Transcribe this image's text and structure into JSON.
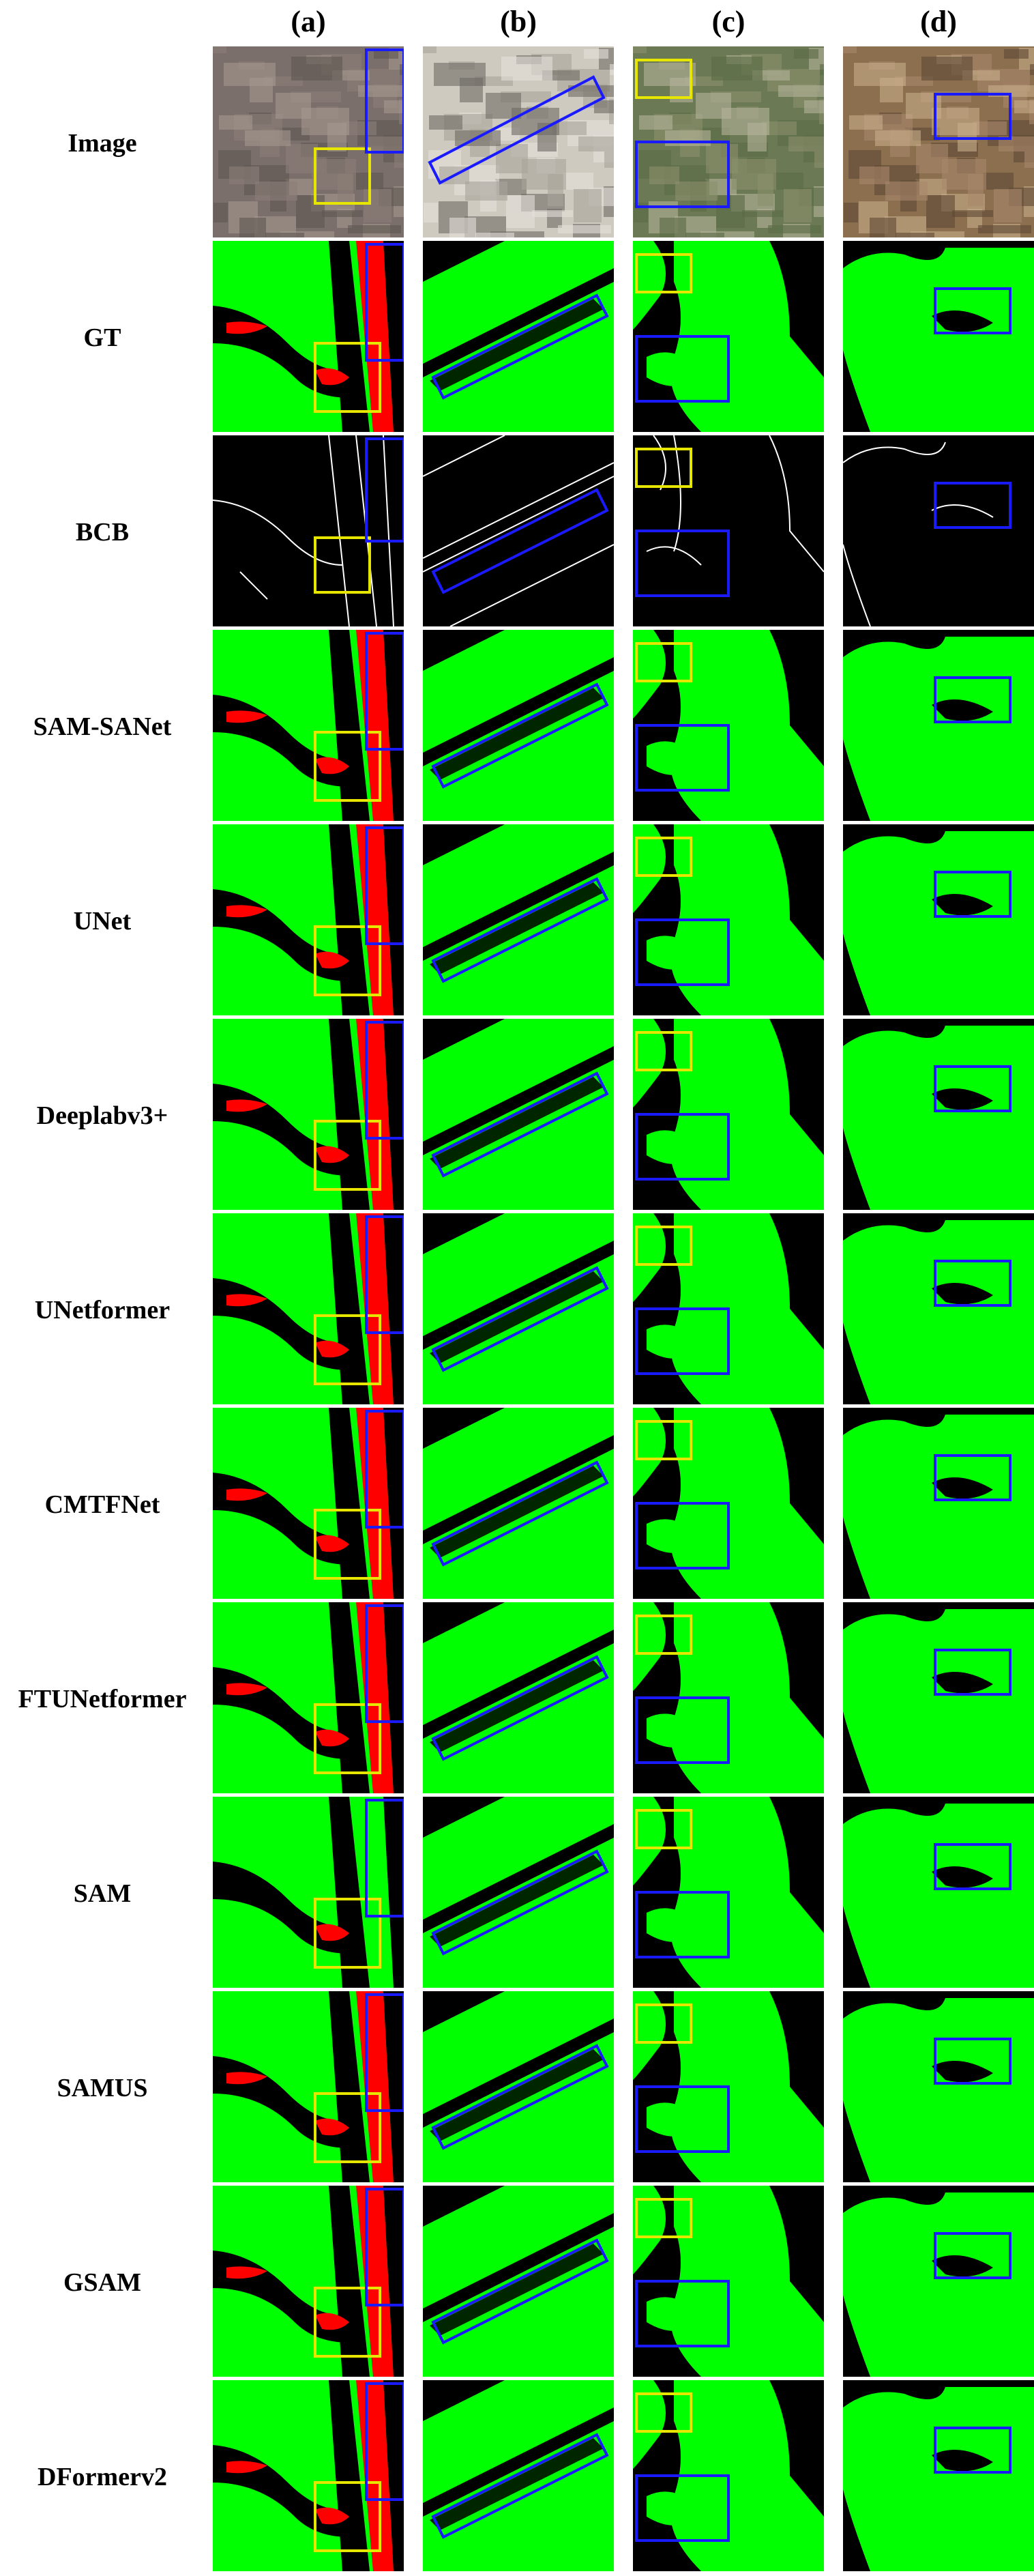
{
  "columns": [
    "(a)",
    "(b)",
    "(c)",
    "(d)"
  ],
  "rows": [
    "Image",
    "GT",
    "BCB",
    "SAM-SANet",
    "UNet",
    "Deeplabv3+",
    "UNetformer",
    "CMTFNet",
    "FTUNetformer",
    "SAM",
    "SAMUS",
    "GSAM",
    "DFormerv2"
  ],
  "colors": {
    "green": "#00ff00",
    "red": "#ff0000",
    "black": "#000000",
    "white": "#ffffff",
    "blue_box": "#1a1aff",
    "yellow_box": "#e6e600"
  }
}
